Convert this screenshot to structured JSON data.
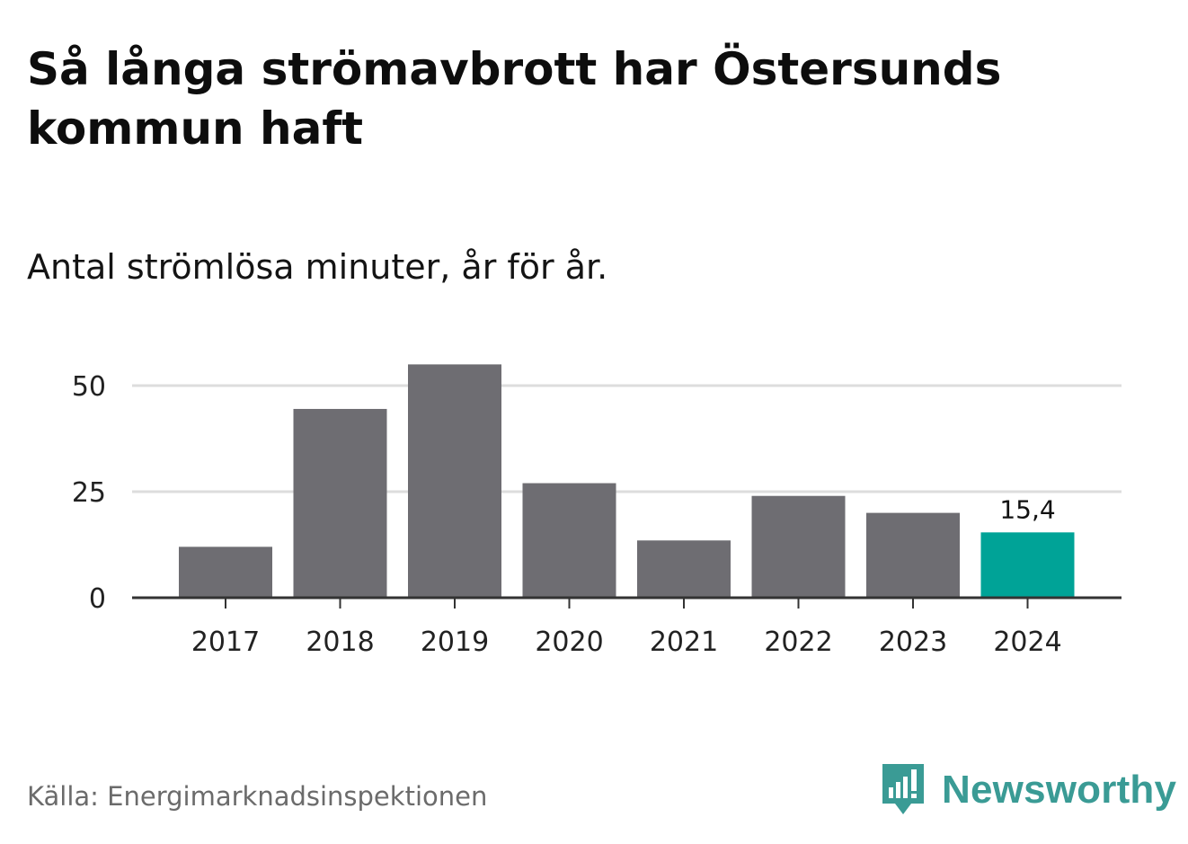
{
  "title": "Så långa strömavbrott har Östersunds kommun haft",
  "subtitle": "Antal strömlösa minuter, år för år.",
  "source": "Källa: Energimarknadsinspektionen",
  "logo": {
    "icon": "newsworthy-chart-bubble-icon",
    "text": "Newsworthy"
  },
  "colors": {
    "bar_default": "#6e6d72",
    "bar_highlight": "#00a397",
    "grid": "#dddddd",
    "axis": "#333333",
    "brand": "#3a9b95"
  },
  "chart_data": {
    "type": "bar",
    "title": "Så långa strömavbrott har Östersunds kommun haft",
    "subtitle": "Antal strömlösa minuter, år för år.",
    "categories": [
      "2017",
      "2018",
      "2019",
      "2020",
      "2021",
      "2022",
      "2023",
      "2024"
    ],
    "values": [
      12.0,
      44.5,
      55.0,
      27.0,
      13.5,
      24.0,
      20.0,
      15.4
    ],
    "highlight_index": 7,
    "data_labels": [
      {
        "index": 7,
        "text": "15,4"
      }
    ],
    "yticks": [
      0,
      25,
      50
    ],
    "ylim": [
      0,
      55
    ],
    "grid": true,
    "xlabel": "",
    "ylabel": ""
  }
}
